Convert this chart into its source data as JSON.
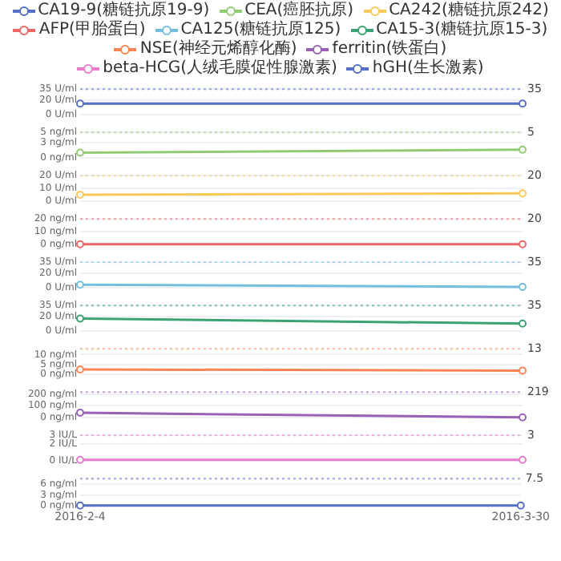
{
  "chart_data": [
    {
      "type": "line",
      "x": [
        "2016-02-04",
        "2016-03-30"
      ],
      "xlim": [
        "2016-02-04",
        "2016-03-30"
      ],
      "tick_labels": "y",
      "ylim": [
        0,
        35
      ],
      "yticks": [
        {
          "value": 0,
          "label": "0 U/ml"
        },
        {
          "value": 20,
          "label": "20 U/ml"
        },
        {
          "value": 35,
          "label": "35 U/ml"
        }
      ],
      "grid": "y",
      "legend": "top",
      "marker": "circle",
      "series": [
        {
          "name": "CA19-9(糖链抗原19-9)",
          "color": "#5470c6",
          "values": [
            15,
            15
          ]
        }
      ],
      "ref_lines": [
        {
          "axis": "y",
          "value": 35,
          "label": "35",
          "color": "#5470c6",
          "line_style": "dotted"
        }
      ]
    },
    {
      "type": "line",
      "x": [
        "2016-02-04",
        "2016-03-30"
      ],
      "xlim": [
        "2016-02-04",
        "2016-03-30"
      ],
      "tick_labels": "y",
      "ylim": [
        0,
        5
      ],
      "yticks": [
        {
          "value": 0,
          "label": "0 ng/ml"
        },
        {
          "value": 3,
          "label": "3 ng/ml"
        },
        {
          "value": 5,
          "label": "5 ng/ml"
        }
      ],
      "grid": "y",
      "legend": "top",
      "marker": "circle",
      "series": [
        {
          "name": "CEA(癌胚抗原)",
          "color": "#91cc75",
          "values": [
            1,
            1.6
          ]
        }
      ],
      "ref_lines": [
        {
          "axis": "y",
          "value": 5,
          "label": "5",
          "color": "#91cc75",
          "line_style": "dotted"
        }
      ]
    },
    {
      "type": "line",
      "x": [
        "2016-02-04",
        "2016-03-30"
      ],
      "xlim": [
        "2016-02-04",
        "2016-03-30"
      ],
      "tick_labels": "y",
      "ylim": [
        0,
        20
      ],
      "yticks": [
        {
          "value": 0,
          "label": "0 U/ml"
        },
        {
          "value": 10,
          "label": "10 U/ml"
        },
        {
          "value": 20,
          "label": "20 U/ml"
        }
      ],
      "grid": "y",
      "legend": "top",
      "marker": "circle",
      "series": [
        {
          "name": "CA242(糖链抗原242)",
          "color": "#fac858",
          "values": [
            5,
            6
          ]
        }
      ],
      "ref_lines": [
        {
          "axis": "y",
          "value": 20,
          "label": "20",
          "color": "#fac858",
          "line_style": "dotted"
        }
      ]
    },
    {
      "type": "line",
      "x": [
        "2016-02-04",
        "2016-03-30"
      ],
      "xlim": [
        "2016-02-04",
        "2016-03-30"
      ],
      "tick_labels": "y",
      "ylim": [
        0,
        20
      ],
      "yticks": [
        {
          "value": 0,
          "label": "0 ng/ml"
        },
        {
          "value": 10,
          "label": "10 ng/ml"
        },
        {
          "value": 20,
          "label": "20 ng/ml"
        }
      ],
      "grid": "y",
      "legend": "top",
      "marker": "circle",
      "series": [
        {
          "name": "AFP(甲胎蛋白)",
          "color": "#ee6666",
          "values": [
            0,
            0
          ]
        }
      ],
      "ref_lines": [
        {
          "axis": "y",
          "value": 20,
          "label": "20",
          "color": "#ee6666",
          "line_style": "dotted"
        }
      ]
    },
    {
      "type": "line",
      "x": [
        "2016-02-04",
        "2016-03-30"
      ],
      "xlim": [
        "2016-02-04",
        "2016-03-30"
      ],
      "tick_labels": "y",
      "ylim": [
        0,
        35
      ],
      "yticks": [
        {
          "value": 0,
          "label": "0 U/ml"
        },
        {
          "value": 20,
          "label": "20 U/ml"
        },
        {
          "value": 35,
          "label": "35 U/ml"
        }
      ],
      "grid": "y",
      "legend": "top",
      "marker": "circle",
      "series": [
        {
          "name": "CA125(糖链抗原125)",
          "color": "#73c0de",
          "values": [
            4,
            1
          ]
        }
      ],
      "ref_lines": [
        {
          "axis": "y",
          "value": 35,
          "label": "35",
          "color": "#73c0de",
          "line_style": "dotted"
        }
      ]
    },
    {
      "type": "line",
      "x": [
        "2016-02-04",
        "2016-03-30"
      ],
      "xlim": [
        "2016-02-04",
        "2016-03-30"
      ],
      "tick_labels": "y",
      "ylim": [
        0,
        35
      ],
      "yticks": [
        {
          "value": 0,
          "label": "0 U/ml"
        },
        {
          "value": 20,
          "label": "20 U/ml"
        },
        {
          "value": 35,
          "label": "35 U/ml"
        }
      ],
      "grid": "y",
      "legend": "top",
      "marker": "circle",
      "series": [
        {
          "name": "CA15-3(糖链抗原15-3)",
          "color": "#3ba272",
          "values": [
            17,
            10
          ]
        }
      ],
      "ref_lines": [
        {
          "axis": "y",
          "value": 35,
          "label": "35",
          "color": "#3ba272",
          "line_style": "dotted"
        }
      ]
    },
    {
      "type": "line",
      "x": [
        "2016-02-04",
        "2016-03-30"
      ],
      "xlim": [
        "2016-02-04",
        "2016-03-30"
      ],
      "tick_labels": "y",
      "ylim": [
        0,
        13
      ],
      "yticks": [
        {
          "value": 0,
          "label": "0 ng/ml"
        },
        {
          "value": 5,
          "label": "5 ng/ml"
        },
        {
          "value": 10,
          "label": "10 ng/ml"
        }
      ],
      "grid": "y",
      "legend": "top",
      "marker": "circle",
      "series": [
        {
          "name": "NSE(神经元烯醇化酶)",
          "color": "#fc8452",
          "values": [
            2.4,
            1.8
          ]
        }
      ],
      "ref_lines": [
        {
          "axis": "y",
          "value": 13,
          "label": "13",
          "color": "#fc8452",
          "line_style": "dotted"
        }
      ]
    },
    {
      "type": "line",
      "x": [
        "2016-02-04",
        "2016-03-30"
      ],
      "xlim": [
        "2016-02-04",
        "2016-03-30"
      ],
      "tick_labels": "y",
      "ylim": [
        0,
        219
      ],
      "yticks": [
        {
          "value": 0,
          "label": "0 ng/ml"
        },
        {
          "value": 100,
          "label": "100 ng/ml"
        },
        {
          "value": 200,
          "label": "200 ng/ml"
        }
      ],
      "grid": "y",
      "legend": "top",
      "marker": "circle",
      "series": [
        {
          "name": "ferritin(铁蛋白)",
          "color": "#9a60b4",
          "values": [
            40,
            0
          ]
        }
      ],
      "ref_lines": [
        {
          "axis": "y",
          "value": 219,
          "label": "219",
          "color": "#9a60b4",
          "line_style": "dotted"
        }
      ]
    },
    {
      "type": "line",
      "x": [
        "2016-02-04",
        "2016-03-30"
      ],
      "xlim": [
        "2016-02-04",
        "2016-03-30"
      ],
      "tick_labels": "y",
      "ylim": [
        0,
        3
      ],
      "yticks": [
        {
          "value": 0,
          "label": "0 IU/L"
        },
        {
          "value": 2,
          "label": "2 IU/L"
        },
        {
          "value": 3,
          "label": "3 IU/L"
        }
      ],
      "grid": "y",
      "legend": "top",
      "marker": "circle",
      "series": [
        {
          "name": "beta-HCG(人绒毛膜促性腺激素)",
          "color": "#ea7ccc",
          "values": [
            0.1,
            0.1
          ]
        }
      ],
      "ref_lines": [
        {
          "axis": "y",
          "value": 3,
          "label": "3",
          "color": "#ea7ccc",
          "line_style": "dotted"
        }
      ]
    },
    {
      "type": "line",
      "x": [
        "2016-02-04",
        "2016-03-30"
      ],
      "xlim": [
        "2016-02-04",
        "2016-03-30"
      ],
      "xticks": [
        {
          "value": "2016-02-04",
          "label": "2016-2-4"
        },
        {
          "value": "2016-03-30",
          "label": "2016-3-30"
        }
      ],
      "ylim": [
        0,
        7.5
      ],
      "yticks": [
        {
          "value": 0,
          "label": "0 ng/ml"
        },
        {
          "value": 3,
          "label": "3 ng/ml"
        },
        {
          "value": 6,
          "label": "6 ng/ml"
        }
      ],
      "grid": "y",
      "legend": "top",
      "marker": "circle",
      "series": [
        {
          "name": "hGH(生长激素)",
          "color": "#5470c6",
          "values": [
            0.1,
            0.1
          ]
        }
      ],
      "ref_lines": [
        {
          "axis": "y",
          "value": 7.5,
          "label": "7.5",
          "color": "#5470c6",
          "line_style": "dotted"
        }
      ]
    }
  ]
}
